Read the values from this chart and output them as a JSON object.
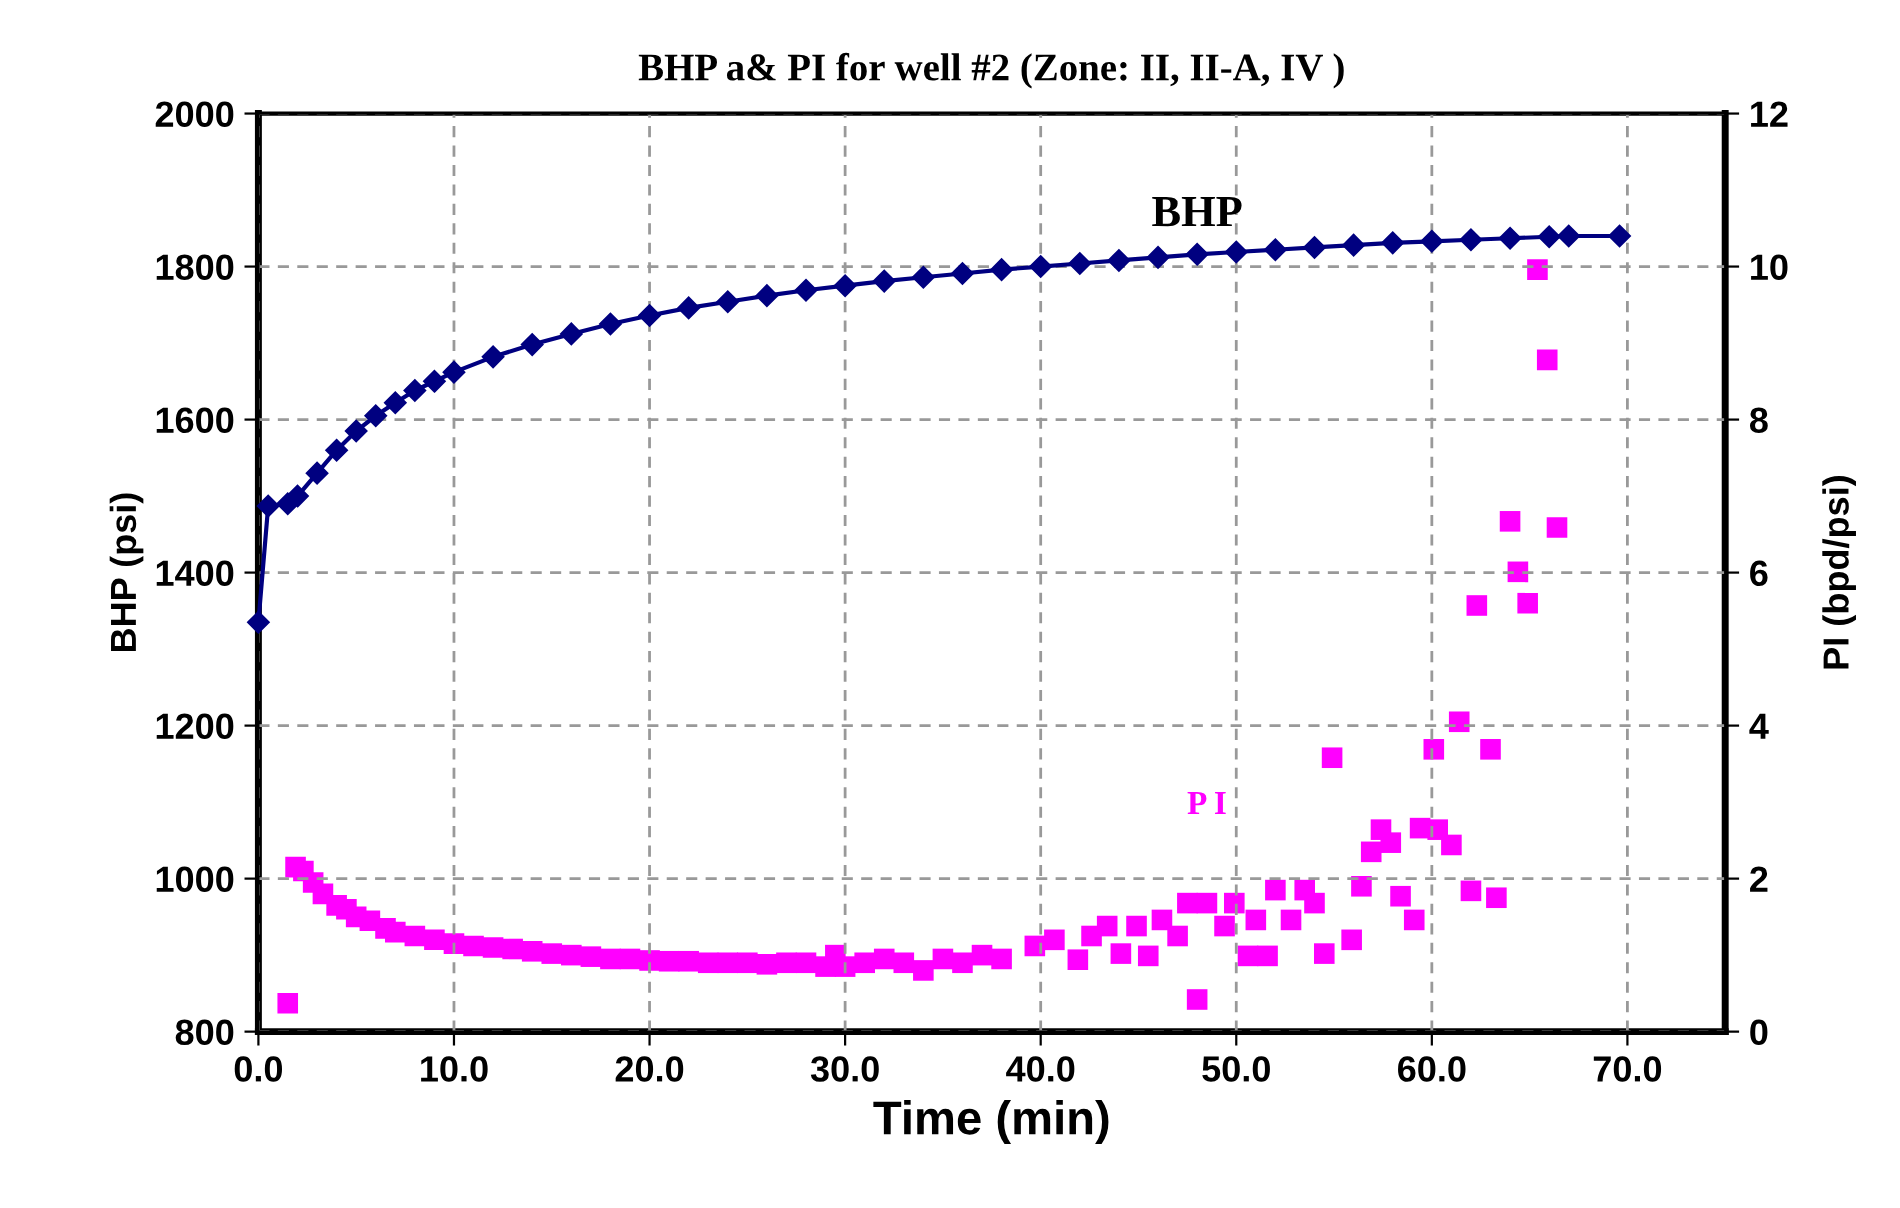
{
  "chart_data": {
    "type": "line",
    "title": "BHP a& PI for well #2 (Zone: II, II-A, IV )",
    "xlabel": "Time (min)",
    "ylabel": "BHP (psi)",
    "y2label": "PI (bpd/psi)",
    "xlim": [
      0,
      75
    ],
    "xticks": [
      {
        "value": 0,
        "label": "0.0"
      },
      {
        "value": 10,
        "label": "10.0"
      },
      {
        "value": 20,
        "label": "20.0"
      },
      {
        "value": 30,
        "label": "30.0"
      },
      {
        "value": 40,
        "label": "40.0"
      },
      {
        "value": 50,
        "label": "50.0"
      },
      {
        "value": 60,
        "label": "60.0"
      },
      {
        "value": 70,
        "label": "70.0"
      }
    ],
    "ylim": [
      800,
      2000
    ],
    "yticks": [
      800,
      1000,
      1200,
      1400,
      1600,
      1800,
      2000
    ],
    "y2lim": [
      0,
      12
    ],
    "y2ticks": [
      0,
      2,
      4,
      6,
      8,
      10,
      12
    ],
    "grid": true,
    "legend": false,
    "series": [
      {
        "name": "BHP",
        "color": "#000080",
        "marker": "diamond",
        "line_style": "solid",
        "x": [
          0,
          0.5,
          1.5,
          2,
          3,
          4,
          5,
          6,
          7,
          8,
          9,
          10,
          12,
          14,
          16,
          18,
          20,
          22,
          24,
          26,
          28,
          30,
          32,
          34,
          36,
          38,
          40,
          42,
          44,
          46,
          48,
          50,
          52,
          54,
          56,
          58,
          60,
          62,
          64,
          66,
          67,
          69.6
        ],
        "values": [
          1335,
          1487,
          1490,
          1500,
          1530,
          1560,
          1585,
          1605,
          1622,
          1638,
          1650,
          1662,
          1682,
          1698,
          1712,
          1725,
          1736,
          1746,
          1754,
          1762,
          1769,
          1775,
          1781,
          1786,
          1791,
          1796,
          1800,
          1804,
          1808,
          1812,
          1816,
          1819,
          1822,
          1825,
          1828,
          1831,
          1833,
          1835,
          1837,
          1839,
          1840,
          1840
        ]
      },
      {
        "name": "P I",
        "type": "scatter",
        "axis": "y2",
        "color": "#ff00ff",
        "marker": "square",
        "x": [
          1.5,
          1.9,
          2.3,
          2.8,
          3.3,
          4,
          4.5,
          5,
          5.7,
          6.5,
          7,
          8,
          9,
          10,
          11,
          12,
          13,
          14,
          15,
          16,
          17,
          18,
          19,
          20,
          21,
          22,
          23,
          24,
          25,
          26,
          27,
          28,
          29,
          29.5,
          30,
          31,
          32,
          33,
          34,
          35,
          36,
          37,
          38,
          39.7,
          40.7,
          41.9,
          42.6,
          43.4,
          44.1,
          44.9,
          45.5,
          46.2,
          47,
          47.5,
          48,
          48.5,
          49.4,
          49.9,
          50.6,
          51,
          51.6,
          52,
          52.8,
          53.5,
          54,
          54.5,
          54.9,
          55.9,
          56.4,
          56.9,
          57.4,
          57.9,
          58.4,
          59.1,
          59.4,
          60.1,
          60.3,
          61,
          61.4,
          62,
          62.3,
          63,
          63.3,
          64,
          64.4,
          64.9,
          65.4,
          65.9,
          66.4
        ],
        "values": [
          0.37,
          2.15,
          2.1,
          1.95,
          1.8,
          1.65,
          1.6,
          1.5,
          1.45,
          1.35,
          1.3,
          1.25,
          1.2,
          1.15,
          1.12,
          1.1,
          1.08,
          1.05,
          1.02,
          1.0,
          0.98,
          0.95,
          0.95,
          0.93,
          0.92,
          0.92,
          0.9,
          0.9,
          0.9,
          0.88,
          0.9,
          0.9,
          0.85,
          1.0,
          0.85,
          0.9,
          0.95,
          0.9,
          0.8,
          0.95,
          0.9,
          1.0,
          0.95,
          1.12,
          1.2,
          0.94,
          1.25,
          1.38,
          1.02,
          1.38,
          0.99,
          1.46,
          1.25,
          1.68,
          0.42,
          1.68,
          1.38,
          1.68,
          0.99,
          1.46,
          0.99,
          1.85,
          1.46,
          1.85,
          1.68,
          1.02,
          3.58,
          1.2,
          1.9,
          2.35,
          2.64,
          2.47,
          1.77,
          1.46,
          2.66,
          3.69,
          2.64,
          2.44,
          4.05,
          1.84,
          5.57,
          3.69,
          1.75,
          6.67,
          6.01,
          5.6,
          9.96,
          8.78,
          6.59
        ]
      }
    ]
  }
}
